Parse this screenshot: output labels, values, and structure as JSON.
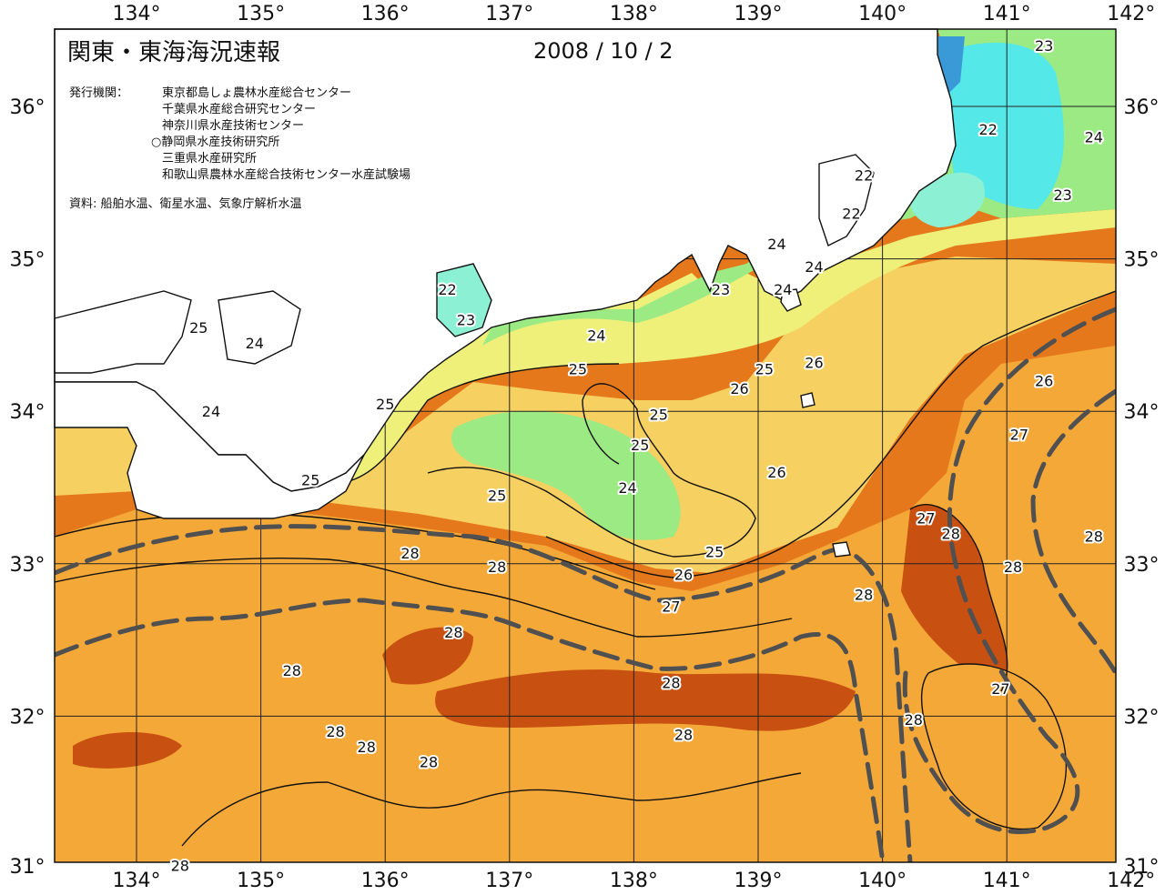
{
  "header": {
    "title": "関東・東海海況速報",
    "date": "2008 / 10 / 2",
    "publisher_heading": "発行機関：",
    "publishers": [
      "東京都島しょ農林水産総合センター",
      "千葉県水産総合研究センター",
      "神奈川県水産技術センター",
      "○静岡県水産技術研究所",
      "三重県水産研究所",
      "和歌山県農林水産総合技術センター水産試験場"
    ],
    "source": "資料: 船舶水温、衛星水温、気象庁解析水温"
  },
  "axes": {
    "longitude_labels": [
      "134°",
      "135°",
      "136°",
      "137°",
      "138°",
      "139°",
      "140°",
      "141°",
      "142°"
    ],
    "latitude_labels": [
      "36°",
      "35°",
      "34°",
      "33°",
      "32°",
      "31°"
    ]
  },
  "contour_labels": [
    {
      "text": "23",
      "lon": 141.3,
      "lat": 36.4
    },
    {
      "text": "22",
      "lon": 140.85,
      "lat": 35.85
    },
    {
      "text": "24",
      "lon": 141.7,
      "lat": 35.8
    },
    {
      "text": "22",
      "lon": 139.85,
      "lat": 35.55
    },
    {
      "text": "23",
      "lon": 141.45,
      "lat": 35.42
    },
    {
      "text": "22",
      "lon": 139.75,
      "lat": 35.3
    },
    {
      "text": "24",
      "lon": 139.15,
      "lat": 35.1
    },
    {
      "text": "24",
      "lon": 139.45,
      "lat": 34.95
    },
    {
      "text": "22",
      "lon": 136.5,
      "lat": 34.8
    },
    {
      "text": "24",
      "lon": 139.2,
      "lat": 34.8
    },
    {
      "text": "23",
      "lon": 138.7,
      "lat": 34.8
    },
    {
      "text": "23",
      "lon": 136.65,
      "lat": 34.6
    },
    {
      "text": "25",
      "lon": 134.5,
      "lat": 34.55
    },
    {
      "text": "24",
      "lon": 134.95,
      "lat": 34.45
    },
    {
      "text": "24",
      "lon": 137.7,
      "lat": 34.5
    },
    {
      "text": "25",
      "lon": 137.55,
      "lat": 34.28
    },
    {
      "text": "25",
      "lon": 139.05,
      "lat": 34.28
    },
    {
      "text": "26",
      "lon": 139.45,
      "lat": 34.32
    },
    {
      "text": "26",
      "lon": 138.85,
      "lat": 34.15
    },
    {
      "text": "26",
      "lon": 141.3,
      "lat": 34.2
    },
    {
      "text": "25",
      "lon": 136.0,
      "lat": 34.05
    },
    {
      "text": "24",
      "lon": 134.6,
      "lat": 34.0
    },
    {
      "text": "25",
      "lon": 138.2,
      "lat": 33.98
    },
    {
      "text": "25",
      "lon": 138.05,
      "lat": 33.78
    },
    {
      "text": "27",
      "lon": 141.1,
      "lat": 33.85
    },
    {
      "text": "26",
      "lon": 139.15,
      "lat": 33.6
    },
    {
      "text": "25",
      "lon": 135.4,
      "lat": 33.55
    },
    {
      "text": "24",
      "lon": 137.95,
      "lat": 33.5
    },
    {
      "text": "25",
      "lon": 136.9,
      "lat": 33.45
    },
    {
      "text": "27",
      "lon": 140.35,
      "lat": 33.3
    },
    {
      "text": "28",
      "lon": 140.55,
      "lat": 33.2
    },
    {
      "text": "28",
      "lon": 141.7,
      "lat": 33.18
    },
    {
      "text": "25",
      "lon": 138.65,
      "lat": 33.08
    },
    {
      "text": "28",
      "lon": 136.2,
      "lat": 33.07
    },
    {
      "text": "28",
      "lon": 136.9,
      "lat": 32.98
    },
    {
      "text": "28",
      "lon": 141.05,
      "lat": 32.98
    },
    {
      "text": "26",
      "lon": 138.4,
      "lat": 32.93
    },
    {
      "text": "28",
      "lon": 139.85,
      "lat": 32.8
    },
    {
      "text": "27",
      "lon": 138.3,
      "lat": 32.72
    },
    {
      "text": "28",
      "lon": 136.55,
      "lat": 32.55
    },
    {
      "text": "28",
      "lon": 135.25,
      "lat": 32.3
    },
    {
      "text": "28",
      "lon": 138.3,
      "lat": 32.22
    },
    {
      "text": "27",
      "lon": 140.95,
      "lat": 32.18
    },
    {
      "text": "28",
      "lon": 140.25,
      "lat": 31.98
    },
    {
      "text": "28",
      "lon": 135.6,
      "lat": 31.9
    },
    {
      "text": "28",
      "lon": 138.4,
      "lat": 31.88
    },
    {
      "text": "28",
      "lon": 135.85,
      "lat": 31.8
    },
    {
      "text": "28",
      "lon": 136.35,
      "lat": 31.7
    },
    {
      "text": "28",
      "lon": 134.35,
      "lat": 31.02
    }
  ],
  "colors": {
    "t22": "#55e8e8",
    "t23": "#8cf0d4",
    "t24": "#9bea84",
    "t25": "#eef07a",
    "t26": "#f6d060",
    "t27": "#f4a838",
    "t28": "#e6781c",
    "t29": "#c85010",
    "cold": "#3a9ad8",
    "land": "#ffffff",
    "kuroshio": "#505050"
  }
}
